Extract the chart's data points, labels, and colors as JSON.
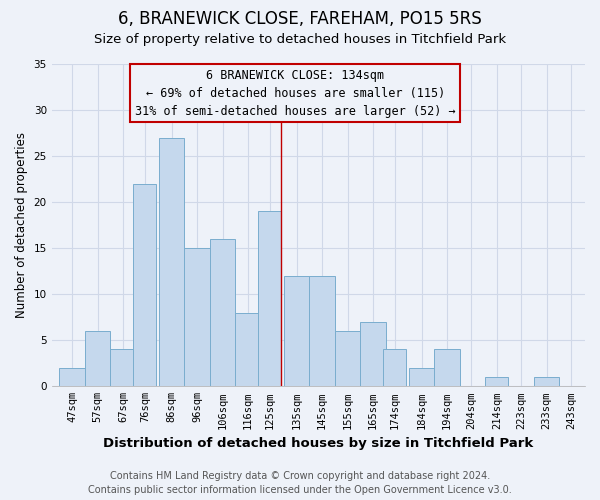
{
  "title": "6, BRANEWICK CLOSE, FAREHAM, PO15 5RS",
  "subtitle": "Size of property relative to detached houses in Titchfield Park",
  "xlabel": "Distribution of detached houses by size in Titchfield Park",
  "ylabel": "Number of detached properties",
  "bin_labels": [
    "47sqm",
    "57sqm",
    "67sqm",
    "76sqm",
    "86sqm",
    "96sqm",
    "106sqm",
    "116sqm",
    "125sqm",
    "135sqm",
    "145sqm",
    "155sqm",
    "165sqm",
    "174sqm",
    "184sqm",
    "194sqm",
    "204sqm",
    "214sqm",
    "223sqm",
    "233sqm",
    "243sqm"
  ],
  "bar_heights": [
    2,
    6,
    4,
    22,
    27,
    15,
    16,
    8,
    19,
    12,
    12,
    6,
    7,
    4,
    2,
    4,
    0,
    1,
    0,
    1,
    0
  ],
  "bar_left_edges": [
    47,
    57,
    67,
    76,
    86,
    96,
    106,
    116,
    125,
    135,
    145,
    155,
    165,
    174,
    184,
    194,
    204,
    214,
    223,
    233,
    243
  ],
  "bar_widths": [
    10,
    10,
    10,
    9,
    10,
    10,
    10,
    10,
    9,
    10,
    10,
    10,
    10,
    9,
    10,
    10,
    9,
    9,
    10,
    10,
    9
  ],
  "bar_color": "#c5d8ed",
  "bar_edge_color": "#7aadce",
  "reference_line_x": 134,
  "reference_line_color": "#c00000",
  "annotation_box_edge_color": "#c00000",
  "annotation_line1": "6 BRANEWICK CLOSE: 134sqm",
  "annotation_line2": "← 69% of detached houses are smaller (115)",
  "annotation_line3": "31% of semi-detached houses are larger (52) →",
  "ylim": [
    0,
    35
  ],
  "yticks": [
    0,
    5,
    10,
    15,
    20,
    25,
    30,
    35
  ],
  "xlim_left": 44,
  "xlim_right": 253,
  "footnote1": "Contains HM Land Registry data © Crown copyright and database right 2024.",
  "footnote2": "Contains public sector information licensed under the Open Government Licence v3.0.",
  "background_color": "#eef2f9",
  "grid_color": "#d0d8e8",
  "title_fontsize": 12,
  "subtitle_fontsize": 9.5,
  "xlabel_fontsize": 9.5,
  "ylabel_fontsize": 8.5,
  "tick_fontsize": 7.5,
  "footnote_fontsize": 7,
  "annotation_fontsize": 8.5
}
